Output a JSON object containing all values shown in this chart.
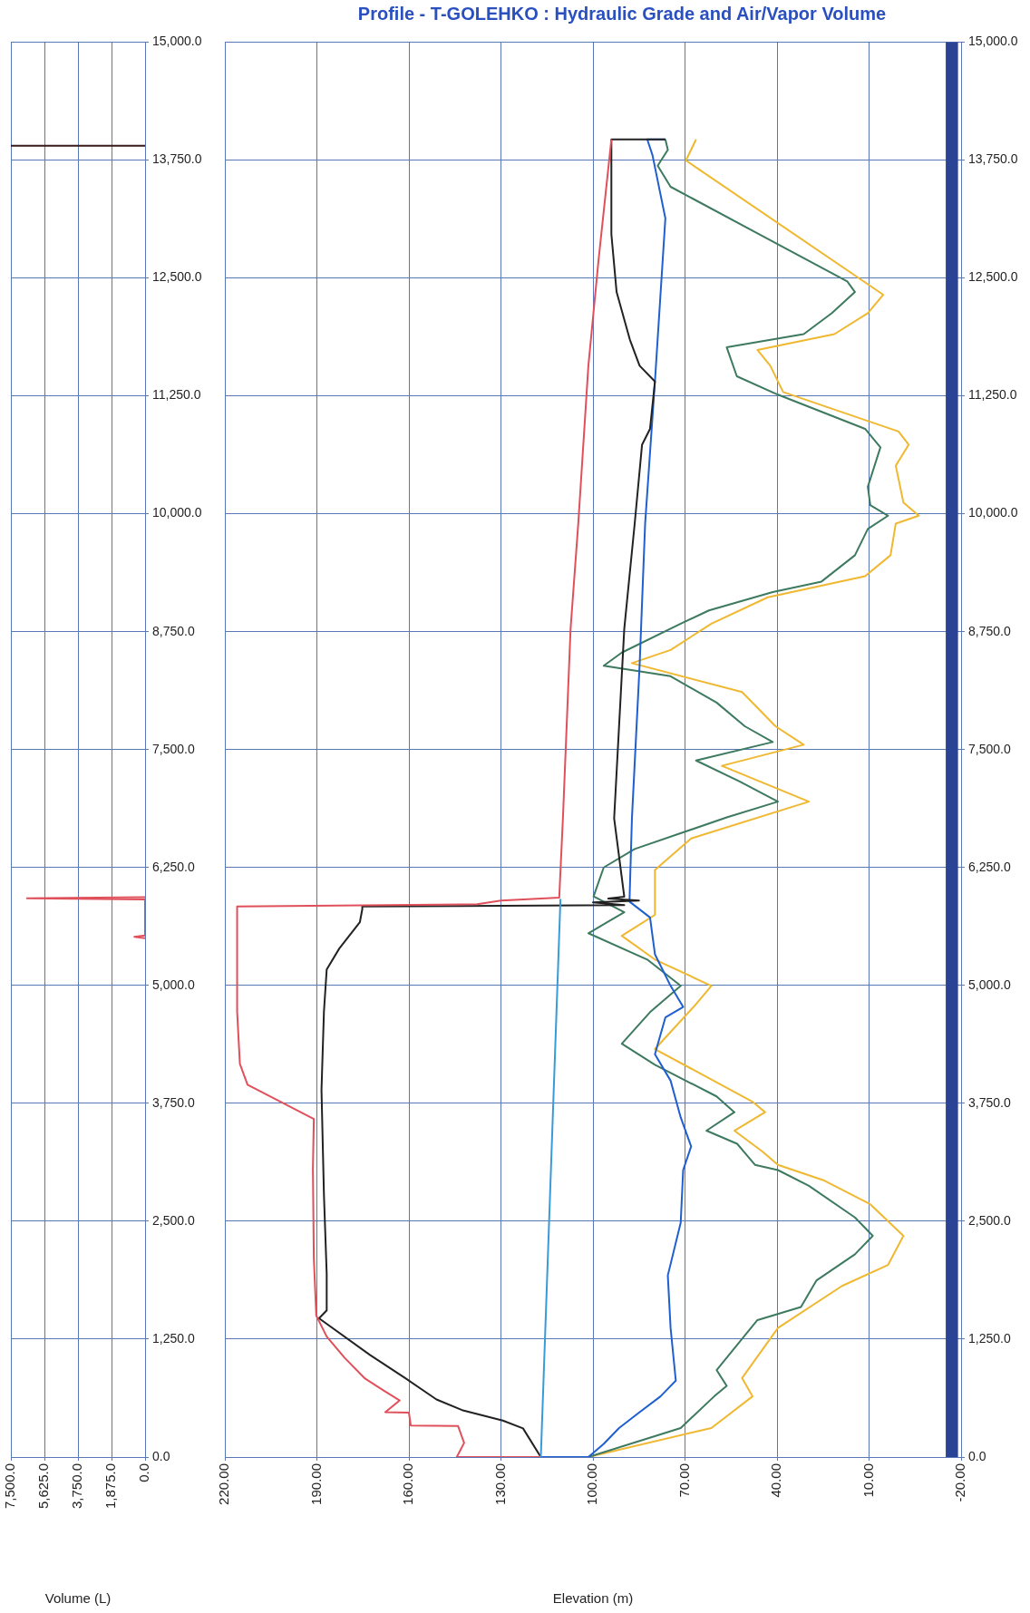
{
  "chart_data": [
    {
      "type": "line",
      "xlabel": "Volume (L)",
      "xlim": [
        7500,
        0
      ],
      "ylim": [
        0,
        15000
      ],
      "xticks": [
        {
          "value": 7500,
          "label": "7,500.0"
        },
        {
          "value": 5625,
          "label": "5,625.0"
        },
        {
          "value": 3750,
          "label": "3,750.0"
        },
        {
          "value": 1875,
          "label": "1,875.0"
        },
        {
          "value": 0,
          "label": "0.0"
        }
      ],
      "yticks": [
        {
          "value": 0,
          "label": "0.0"
        },
        {
          "value": 1250,
          "label": "1,250.0"
        },
        {
          "value": 2500,
          "label": "2,500.0"
        },
        {
          "value": 3750,
          "label": "3,750.0"
        },
        {
          "value": 5000,
          "label": "5,000.0"
        },
        {
          "value": 6250,
          "label": "6,250.0"
        },
        {
          "value": 7500,
          "label": "7,500.0"
        },
        {
          "value": 8750,
          "label": "8,750.0"
        },
        {
          "value": 10000,
          "label": "10,000.0"
        },
        {
          "value": 11250,
          "label": "11,250.0"
        },
        {
          "value": 12500,
          "label": "12,500.0"
        },
        {
          "value": 13750,
          "label": "13,750.0"
        },
        {
          "value": 15000,
          "label": "15,000.0"
        }
      ],
      "grid": true,
      "marker": "none",
      "line_style": "solid",
      "ref_lines": [
        {
          "axis": "y",
          "value": 13900,
          "color": "#3a1a1a"
        }
      ],
      "series": [
        {
          "color": "#e0505a",
          "x": [
            0,
            600,
            0,
            0,
            6600,
            0
          ],
          "values": [
            5500,
            5515,
            5530,
            5910,
            5923,
            5936
          ]
        }
      ]
    },
    {
      "type": "line",
      "title": "Profile - T-GOLEHKO : Hydraulic Grade and Air/Vapor Volume",
      "xlabel": "Elevation (m)",
      "xlim": [
        220,
        -20
      ],
      "ylim": [
        0,
        15000
      ],
      "xticks": [
        {
          "value": 220,
          "label": "220.00"
        },
        {
          "value": 190,
          "label": "190.00"
        },
        {
          "value": 160,
          "label": "160.00"
        },
        {
          "value": 130,
          "label": "130.00"
        },
        {
          "value": 100,
          "label": "100.00"
        },
        {
          "value": 70,
          "label": "70.00"
        },
        {
          "value": 40,
          "label": "40.00"
        },
        {
          "value": 10,
          "label": "10.00"
        },
        {
          "value": -20,
          "label": "-20.00"
        }
      ],
      "yticks": [
        {
          "value": 0,
          "label": "0.0"
        },
        {
          "value": 1250,
          "label": "1,250.0"
        },
        {
          "value": 2500,
          "label": "2,500.0"
        },
        {
          "value": 3750,
          "label": "3,750.0"
        },
        {
          "value": 5000,
          "label": "5,000.0"
        },
        {
          "value": 6250,
          "label": "6,250.0"
        },
        {
          "value": 7500,
          "label": "7,500.0"
        },
        {
          "value": 8750,
          "label": "8,750.0"
        },
        {
          "value": 10000,
          "label": "10,000.0"
        },
        {
          "value": 11250,
          "label": "11,250.0"
        },
        {
          "value": 12500,
          "label": "12,500.0"
        },
        {
          "value": 13750,
          "label": "13,750.0"
        },
        {
          "value": 15000,
          "label": "15,000.0"
        }
      ],
      "grid": true,
      "marker": "none",
      "line_style": "solid",
      "bands": [
        {
          "axis": "x",
          "from": -19,
          "to": -15,
          "color": "#2b4394"
        }
      ],
      "series": [
        {
          "color": "#3a9ad9",
          "x": [
            117,
            110.6
          ],
          "values": [
            0,
            5916
          ]
        },
        {
          "color": "#e0505a",
          "x": [
            117,
            144.4,
            142,
            144,
            159.4,
            160,
            167.7,
            163,
            168,
            174.3,
            181,
            186.8,
            190.2,
            191,
            191.3,
            191,
            212.6,
            215.1,
            216,
            216,
            137.7,
            130,
            111,
            109.8,
            107.3,
            104.8,
            101.5,
            98.2,
            94
          ],
          "values": [
            0,
            0,
            150,
            330,
            335,
            470,
            475,
            600,
            700,
            832,
            1054,
            1277,
            1500,
            2110,
            3056,
            3584,
            3946,
            4168,
            4724,
            5836,
            5860,
            5900,
            5930,
            6770,
            8779,
            9895,
            11569,
            12685,
            13968
          ]
        },
        {
          "color": "#222222",
          "x": [
            117,
            122.8,
            129.4,
            142.7,
            151,
            161,
            172.7,
            189.3,
            186.8,
            186.8,
            187.7,
            188.5,
            187.7,
            186.8,
            182.7,
            176,
            175.2,
            175.2,
            89.8,
            100,
            85,
            95,
            89.8,
            93.1,
            89.8,
            86.4,
            84,
            81.4,
            79.8,
            84.8,
            88,
            92.3,
            94,
            94,
            76.4
          ],
          "values": [
            0,
            304,
            387,
            498,
            610,
            832,
            1082,
            1471,
            1555,
            1944,
            2778,
            3890,
            4724,
            5169,
            5391,
            5669,
            5808,
            5836,
            5850,
            5880,
            5900,
            5920,
            5940,
            6770,
            8779,
            9895,
            10732,
            10900,
            11402,
            11569,
            11848,
            12350,
            12964,
            13968,
            13968
          ]
        },
        {
          "color": "#1f5fd0",
          "x": [
            117,
            101.5,
            96.5,
            91.5,
            84.8,
            78,
            73,
            74.7,
            75.6,
            71.4,
            70.6,
            68,
            71.4,
            74.7,
            79.8,
            76.4,
            70.6,
            74.7,
            79.8,
            81.4,
            88.1,
            87.3,
            84.8,
            83,
            79.8,
            76.4,
            80.6,
            82.3,
            76.4
          ],
          "values": [
            0,
            0,
            140,
            308,
            475,
            643,
            810,
            1368,
            1926,
            2484,
            3042,
            3293,
            3600,
            3990,
            4270,
            4660,
            4772,
            4995,
            5330,
            5720,
            5888,
            6770,
            8388,
            9895,
            11402,
            13132,
            13801,
            13968,
            13968
          ]
        },
        {
          "color": "#3d7a5f",
          "x": [
            101.5,
            71.4,
            60.5,
            56.4,
            59.7,
            46.4,
            32.2,
            27.2,
            14.6,
            8.8,
            14.6,
            29.6,
            39.7,
            47.2,
            53,
            63,
            53.9,
            59.7,
            79.8,
            90.6,
            81.4,
            71.4,
            82.3,
            101.5,
            89.8,
            99.8,
            96.5,
            86.4,
            56.4,
            39.7,
            52.2,
            66.4,
            41.4,
            50.5,
            59.7,
            74.7,
            96.5,
            90.6,
            71.4,
            62.2,
            41.4,
            25.5,
            14.6,
            10.4,
            3.8,
            9.6,
            10.4,
            6.3,
            11.3,
            39.7,
            53.1,
            56.4,
            31.3,
            22.1,
            14.6,
            17.1,
            74.7,
            78.9,
            75.6,
            76.4
          ],
          "values": [
            0,
            308,
            643,
            754,
            922,
            1452,
            1591,
            1870,
            2149,
            2345,
            2540,
            2875,
            3042,
            3098,
            3321,
            3460,
            3656,
            3823,
            4158,
            4381,
            4716,
            4995,
            5274,
            5553,
            5776,
            5944,
            6250,
            6446,
            6781,
            6948,
            7161,
            7384,
            7580,
            7747,
            7998,
            8277,
            8388,
            8528,
            8835,
            8975,
            9170,
            9281,
            9560,
            9839,
            9979,
            10090,
            10286,
            10704,
            10900,
            11262,
            11457,
            11764,
            11904,
            12127,
            12350,
            12462,
            13466,
            13689,
            13857,
            13968
          ]
        },
        {
          "color": "#f0b830",
          "x": [
            101.5,
            61.4,
            48,
            51.4,
            39.7,
            18.8,
            3.8,
            -1.2,
            9.6,
            24.6,
            39.7,
            44.7,
            53.9,
            43.9,
            48,
            79.8,
            67.2,
            61.4,
            79.8,
            90.6,
            79.8,
            79.8,
            68,
            29.6,
            58,
            31.3,
            40.5,
            51.4,
            87.3,
            74.7,
            61.4,
            43,
            11.3,
            3,
            1.3,
            -6.2,
            -1.2,
            1.3,
            -2.9,
            0.4,
            38,
            42.2,
            46.4,
            21.3,
            10.4,
            5.4,
            69.7,
            66.4
          ],
          "values": [
            0,
            308,
            643,
            838,
            1368,
            1814,
            2037,
            2345,
            2680,
            2931,
            3098,
            3237,
            3460,
            3656,
            3767,
            4325,
            4772,
            4995,
            5274,
            5525,
            5748,
            6223,
            6558,
            6948,
            7328,
            7551,
            7747,
            8110,
            8416,
            8556,
            8835,
            9114,
            9337,
            9560,
            9895,
            9979,
            10118,
            10509,
            10732,
            10872,
            11290,
            11569,
            11736,
            11904,
            12127,
            12322,
            13745,
            13968
          ]
        }
      ]
    }
  ]
}
